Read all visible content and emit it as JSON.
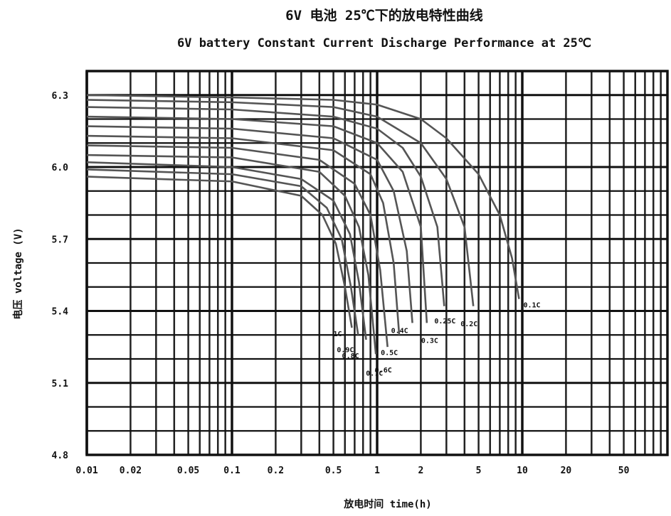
{
  "chart_data": {
    "type": "line",
    "title": "6V 电池 25℃下的放电特性曲线",
    "subtitle": "6V battery Constant Current Discharge  Performance at 25℃",
    "xlabel": "放电时间 time(h)",
    "ylabel": "电压 voltage (V)",
    "x_scale": "log",
    "xlim": [
      0.01,
      100
    ],
    "ylim": [
      4.8,
      6.4
    ],
    "x_ticks": [
      0.01,
      0.02,
      0.05,
      0.1,
      0.2,
      0.5,
      1,
      2,
      5,
      10,
      20,
      50
    ],
    "x_tick_labels": [
      "0.01",
      "0.02",
      "0.05",
      "0.1",
      "0.2",
      "0.5",
      "1",
      "2",
      "5",
      "10",
      "20",
      "50"
    ],
    "y_ticks": [
      4.8,
      5.1,
      5.4,
      5.7,
      6.0,
      6.3
    ],
    "y_tick_labels": [
      "4.8",
      "5.1",
      "5.4",
      "5.7",
      "6.0",
      "6.3"
    ],
    "grid": true,
    "legend": "none",
    "series": [
      {
        "name": "0.1C",
        "x": [
          0.01,
          0.1,
          0.5,
          1,
          2,
          3,
          5,
          7,
          8.5,
          9.5
        ],
        "y": [
          6.3,
          6.29,
          6.28,
          6.26,
          6.2,
          6.12,
          5.97,
          5.8,
          5.62,
          5.45
        ]
      },
      {
        "name": "0.2C",
        "x": [
          0.01,
          0.1,
          0.5,
          1,
          2,
          3,
          4,
          4.6
        ],
        "y": [
          6.28,
          6.27,
          6.25,
          6.21,
          6.1,
          5.95,
          5.75,
          5.42
        ]
      },
      {
        "name": "0.25C",
        "x": [
          0.01,
          0.1,
          0.5,
          1,
          1.5,
          2,
          2.6,
          2.9
        ],
        "y": [
          6.25,
          6.24,
          6.21,
          6.16,
          6.08,
          5.96,
          5.75,
          5.42
        ]
      },
      {
        "name": "0.3C",
        "x": [
          0.01,
          0.1,
          0.5,
          1,
          1.5,
          2,
          2.2
        ],
        "y": [
          6.21,
          6.2,
          6.17,
          6.1,
          5.98,
          5.75,
          5.35
        ]
      },
      {
        "name": "0.4C",
        "x": [
          0.01,
          0.1,
          0.5,
          1,
          1.3,
          1.6,
          1.75
        ],
        "y": [
          6.17,
          6.16,
          6.12,
          6.03,
          5.9,
          5.65,
          5.35
        ]
      },
      {
        "name": "0.5C",
        "x": [
          0.01,
          0.1,
          0.5,
          0.9,
          1.1,
          1.3,
          1.42
        ],
        "y": [
          6.13,
          6.12,
          6.07,
          5.97,
          5.85,
          5.6,
          5.3
        ]
      },
      {
        "name": "0.6C",
        "x": [
          0.01,
          0.1,
          0.4,
          0.7,
          0.9,
          1.05,
          1.18
        ],
        "y": [
          6.09,
          6.08,
          6.03,
          5.93,
          5.8,
          5.57,
          5.25
        ]
      },
      {
        "name": "0.7C",
        "x": [
          0.01,
          0.1,
          0.4,
          0.6,
          0.75,
          0.87,
          0.98
        ],
        "y": [
          6.05,
          6.04,
          5.98,
          5.88,
          5.75,
          5.55,
          5.22
        ]
      },
      {
        "name": "0.8C",
        "x": [
          0.01,
          0.1,
          0.3,
          0.5,
          0.65,
          0.75,
          0.84
        ],
        "y": [
          6.02,
          6.0,
          5.95,
          5.86,
          5.72,
          5.52,
          5.28
        ]
      },
      {
        "name": "0.9C",
        "x": [
          0.01,
          0.1,
          0.3,
          0.45,
          0.57,
          0.66,
          0.74
        ],
        "y": [
          5.99,
          5.97,
          5.92,
          5.83,
          5.7,
          5.5,
          5.3
        ]
      },
      {
        "name": "1C",
        "x": [
          0.01,
          0.1,
          0.3,
          0.42,
          0.52,
          0.6,
          0.67
        ],
        "y": [
          5.96,
          5.94,
          5.88,
          5.8,
          5.68,
          5.5,
          5.33
        ]
      }
    ]
  }
}
